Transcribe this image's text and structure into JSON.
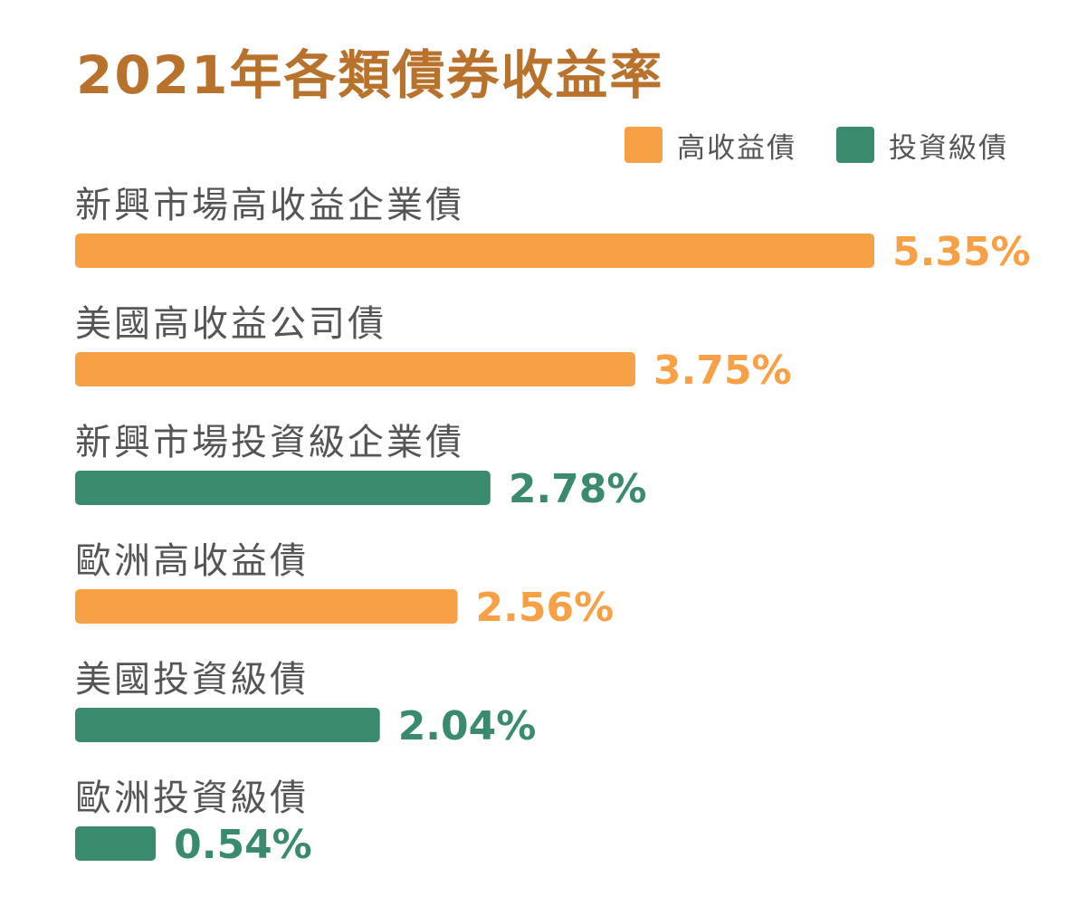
{
  "chart_data": {
    "type": "bar",
    "orientation": "horizontal",
    "title": "2021年各類債券收益率",
    "legend_position": "top-right",
    "grid": false,
    "value_suffix": "%",
    "xlim": [
      0,
      5.35
    ],
    "series": [
      {
        "name": "高收益債",
        "color": "#F8A046"
      },
      {
        "name": "投資級債",
        "color": "#3A8A6E"
      }
    ],
    "categories": [
      "新興市場高收益企業債",
      "美國高收益公司債",
      "新興市場投資級企業債",
      "歐洲高收益債",
      "美國投資級債",
      "歐洲投資級債"
    ],
    "values": [
      5.35,
      3.75,
      2.78,
      2.56,
      2.04,
      0.54
    ],
    "value_labels": [
      "5.35%",
      "3.75%",
      "2.78%",
      "2.56%",
      "2.04%",
      "0.54%"
    ],
    "bar_series": [
      "高收益債",
      "高收益債",
      "投資級債",
      "高收益債",
      "投資級債",
      "投資級債"
    ]
  }
}
